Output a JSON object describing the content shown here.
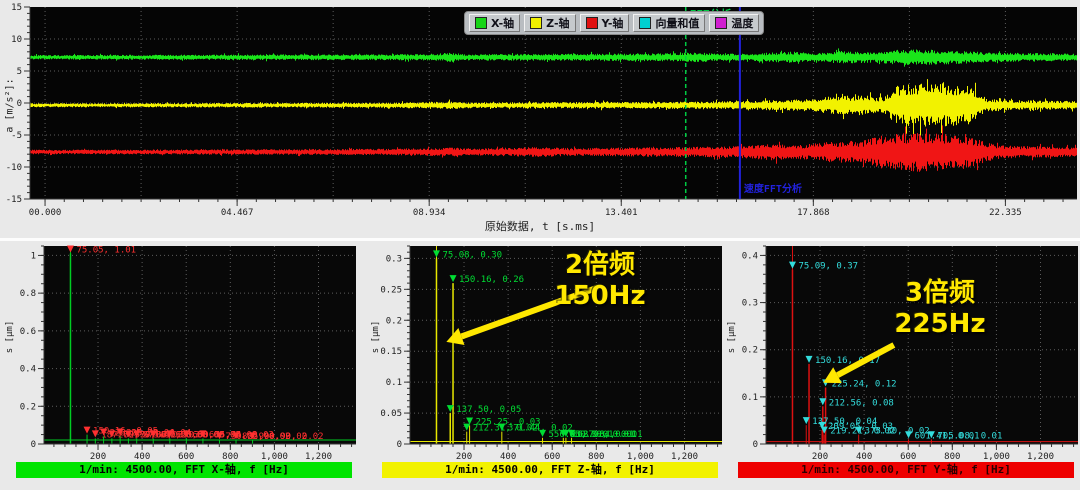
{
  "legend": {
    "items": [
      {
        "label": "X-轴",
        "color": "#17d417"
      },
      {
        "label": "Z-轴",
        "color": "#f0f000"
      },
      {
        "label": "Y-轴",
        "color": "#e01010"
      },
      {
        "label": "向量和值",
        "color": "#00d0d0"
      },
      {
        "label": "温度",
        "color": "#d020d0"
      }
    ]
  },
  "chart_data": [
    {
      "id": "waveform",
      "type": "line",
      "title": "",
      "xlabel": "原始数据, t [s.ms]",
      "ylabel": "a [m/s²]:",
      "xlim": [
        -0.35,
        24.0
      ],
      "ylim": [
        -15,
        15
      ],
      "xticks": [
        [
          0,
          "00.000"
        ],
        [
          4.467,
          "04.467"
        ],
        [
          8.934,
          "08.934"
        ],
        [
          13.401,
          "13.401"
        ],
        [
          17.868,
          "17.868"
        ],
        [
          22.335,
          "22.335"
        ]
      ],
      "yticks": [
        [
          15,
          "15"
        ],
        [
          10,
          "10"
        ],
        [
          5,
          "5"
        ],
        [
          0,
          "0"
        ],
        [
          -5,
          "-5"
        ],
        [
          -10,
          "-10"
        ],
        [
          -15,
          "-15"
        ]
      ],
      "grid": true,
      "series": [
        {
          "name": "X-轴",
          "color": "#1ae51a",
          "offset": 7.15,
          "envelope": [
            [
              0,
              0.35
            ],
            [
              3,
              0.4
            ],
            [
              6,
              0.45
            ],
            [
              9,
              0.5
            ],
            [
              9.4,
              0.75
            ],
            [
              9.7,
              0.5
            ],
            [
              12,
              0.55
            ],
            [
              14,
              0.6
            ],
            [
              15.2,
              0.75
            ],
            [
              15.6,
              0.55
            ],
            [
              16.5,
              0.6
            ],
            [
              17.3,
              0.9
            ],
            [
              18,
              0.7
            ],
            [
              18.5,
              1.0
            ],
            [
              19.3,
              0.85
            ],
            [
              19.8,
              1.15
            ],
            [
              20.5,
              1.3
            ],
            [
              21.3,
              1.0
            ],
            [
              21.8,
              0.8
            ],
            [
              22.6,
              0.7
            ],
            [
              24,
              0.55
            ]
          ]
        },
        {
          "name": "Z-轴",
          "color": "#f2f200",
          "offset": -0.35,
          "envelope": [
            [
              0,
              0.3
            ],
            [
              4,
              0.35
            ],
            [
              8,
              0.4
            ],
            [
              9.4,
              0.6
            ],
            [
              10,
              0.45
            ],
            [
              12,
              0.5
            ],
            [
              13.5,
              0.55
            ],
            [
              15,
              0.6
            ],
            [
              16,
              0.65
            ],
            [
              17,
              0.8
            ],
            [
              17.8,
              1.0
            ],
            [
              18.3,
              1.4
            ],
            [
              19,
              1.6
            ],
            [
              19.5,
              1.2
            ],
            [
              19.8,
              3.2
            ],
            [
              20.8,
              3.5
            ],
            [
              21.5,
              3.0
            ],
            [
              21.9,
              1.0
            ],
            [
              22.5,
              0.8
            ],
            [
              24,
              0.65
            ]
          ]
        },
        {
          "name": "Y-轴",
          "color": "#f01515",
          "offset": -7.65,
          "envelope": [
            [
              0,
              0.35
            ],
            [
              4,
              0.4
            ],
            [
              8,
              0.5
            ],
            [
              9.4,
              0.7
            ],
            [
              10,
              0.55
            ],
            [
              11.5,
              0.8
            ],
            [
              12.2,
              0.6
            ],
            [
              13.5,
              0.7
            ],
            [
              15,
              0.8
            ],
            [
              16,
              0.9
            ],
            [
              16.9,
              1.3
            ],
            [
              17.6,
              1.1
            ],
            [
              18.2,
              1.6
            ],
            [
              19,
              1.8
            ],
            [
              19.4,
              2.6
            ],
            [
              20.3,
              3.1
            ],
            [
              21.3,
              2.8
            ],
            [
              21.9,
              1.5
            ],
            [
              22.3,
              1.0
            ],
            [
              24,
              0.8
            ]
          ]
        }
      ],
      "cursors": [
        {
          "t": 14.9,
          "color": "#00cc44",
          "dash": true,
          "label": "FFT分析",
          "label_pos": "top"
        },
        {
          "t": 16.16,
          "color": "#2222dd",
          "dash": false,
          "label": "速度FFT分析",
          "label_pos": "bottom"
        }
      ]
    },
    {
      "id": "fft_x",
      "type": "bar",
      "ylabel": "s [μm]",
      "ylim": [
        0,
        1.05
      ],
      "ytick_minor": 0.05,
      "yticks": [
        [
          1,
          "1"
        ],
        [
          0.8,
          "0.8"
        ],
        [
          0.6,
          "0.6"
        ],
        [
          0.4,
          "0.4"
        ],
        [
          0.2,
          "0.2"
        ],
        [
          0,
          "0"
        ]
      ],
      "xlim": [
        -45,
        1370
      ],
      "xtick_minor": 50,
      "xticks": [
        [
          200,
          "200"
        ],
        [
          400,
          "400"
        ],
        [
          600,
          "600"
        ],
        [
          800,
          "800"
        ],
        [
          1000,
          "1,000"
        ],
        [
          1200,
          "1,200"
        ]
      ],
      "stick_color": "#00cc22",
      "marker_color": "#ff3030",
      "cursor": {
        "f": 75.05,
        "h": 0.021
      },
      "peaks": [
        {
          "f": 75.05,
          "v": 1.01,
          "label": "75.05, 1.01"
        },
        {
          "f": 150.16,
          "v": 0.05,
          "label": "150.16, 0.05"
        },
        {
          "f": 187.7,
          "v": 0.03,
          "label": "187.70, 0.03"
        },
        {
          "f": 225.25,
          "v": 0.04,
          "label": "225.25, 0.04"
        },
        {
          "f": 262.79,
          "v": 0.03,
          "label": "262.79, 0.03"
        },
        {
          "f": 300.33,
          "v": 0.04,
          "label": "300.33, 0.04"
        },
        {
          "f": 337.87,
          "v": 0.03,
          "label": "337.87, 0.03"
        },
        {
          "f": 375.41,
          "v": 0.03,
          "label": "375.41, 0.03"
        },
        {
          "f": 450.5,
          "v": 0.03,
          "label": "450.50, 0.03"
        },
        {
          "f": 525.58,
          "v": 0.03,
          "label": "525.58, 0.03"
        },
        {
          "f": 600.66,
          "v": 0.03,
          "label": "600.66, 0.03"
        },
        {
          "f": 675.74,
          "v": 0.03,
          "label": "675.74, 0.03"
        },
        {
          "f": 750.82,
          "v": 0.02,
          "label": "750.82, 0.02"
        },
        {
          "f": 825.9,
          "v": 0.02,
          "label": "825.90, 0.02"
        },
        {
          "f": 900.99,
          "v": 0.02,
          "label": "900.99, 0.02"
        }
      ],
      "footer": "1/min: 4500.00, FFT X-轴, f [Hz]",
      "footer_bg": "#00e400",
      "footer_fg": "#000000"
    },
    {
      "id": "fft_z",
      "type": "bar",
      "ylabel": "s [μm]",
      "ylim": [
        0,
        0.32
      ],
      "ytick_minor": 0.01,
      "yticks": [
        [
          0.3,
          "0.3"
        ],
        [
          0.25,
          "0.25"
        ],
        [
          0.2,
          "0.2"
        ],
        [
          0.15,
          "0.15"
        ],
        [
          0.1,
          "0.1"
        ],
        [
          0.05,
          "0.05"
        ],
        [
          0,
          "0"
        ]
      ],
      "xlim": [
        -45,
        1370
      ],
      "xtick_minor": 50,
      "xticks": [
        [
          200,
          "200"
        ],
        [
          400,
          "400"
        ],
        [
          600,
          "600"
        ],
        [
          800,
          "800"
        ],
        [
          1000,
          "1,000"
        ],
        [
          1200,
          "1,200"
        ]
      ],
      "stick_color": "#e8e800",
      "marker_color": "#00dd33",
      "cursor": {
        "f": 75.08,
        "h": 0.004
      },
      "peaks": [
        {
          "f": 75.08,
          "v": 0.3,
          "label": "75.08, 0.30"
        },
        {
          "f": 150.16,
          "v": 0.26,
          "label": "150.16, 0.26"
        },
        {
          "f": 137.5,
          "v": 0.05,
          "label": "137.50, 0.05"
        },
        {
          "f": 225.25,
          "v": 0.03,
          "label": "225.25, 0.03"
        },
        {
          "f": 212.31,
          "v": 0.02,
          "label": "212.31, 0.02"
        },
        {
          "f": 371.44,
          "v": 0.02,
          "label": "371.44, 0.02"
        },
        {
          "f": 556.03,
          "v": 0.01,
          "label": "556.03, 0.01"
        },
        {
          "f": 650.3,
          "v": 0.01,
          "label": "650.30, 0.01"
        },
        {
          "f": 662.08,
          "v": 0.01,
          "label": "662.08, 0.01"
        },
        {
          "f": 687.64,
          "v": 0.01,
          "label": "687.64, 0.01"
        }
      ],
      "annotation": {
        "line1": "2倍频",
        "line2": "150Hz",
        "color": "#ffe800",
        "arrow": {
          "f1": 800,
          "v1": 0.252,
          "f2": 120,
          "v2": 0.165
        }
      },
      "footer": "1/min: 4500.00, FFT Z-轴, f [Hz]",
      "footer_bg": "#f2f200",
      "footer_fg": "#000000"
    },
    {
      "id": "fft_y",
      "type": "bar",
      "ylabel": "s [μm]",
      "ylim": [
        0,
        0.42
      ],
      "ytick_minor": 0.02,
      "yticks": [
        [
          0.4,
          "0.4"
        ],
        [
          0.3,
          "0.3"
        ],
        [
          0.2,
          "0.2"
        ],
        [
          0.1,
          "0.1"
        ],
        [
          0,
          "0"
        ]
      ],
      "xlim": [
        -45,
        1370
      ],
      "xtick_minor": 50,
      "xticks": [
        [
          200,
          "200"
        ],
        [
          400,
          "400"
        ],
        [
          600,
          "600"
        ],
        [
          800,
          "800"
        ],
        [
          1000,
          "1,000"
        ],
        [
          1200,
          "1,200"
        ]
      ],
      "stick_color": "#dd1111",
      "marker_color": "#33dddd",
      "cursor": {
        "f": 75.09,
        "h": 0.005
      },
      "peaks": [
        {
          "f": 75.09,
          "v": 0.37,
          "label": "75.09, 0.37"
        },
        {
          "f": 150.16,
          "v": 0.17,
          "label": "150.16, 0.17"
        },
        {
          "f": 225.24,
          "v": 0.12,
          "label": "225.24, 0.12"
        },
        {
          "f": 212.56,
          "v": 0.08,
          "label": "212.56, 0.08"
        },
        {
          "f": 137.5,
          "v": 0.04,
          "label": "137.50, 0.04"
        },
        {
          "f": 209.05,
          "v": 0.03,
          "label": "209.05, 0.03"
        },
        {
          "f": 219.21,
          "v": 0.02,
          "label": "219.21, 0.02"
        },
        {
          "f": 375.3,
          "v": 0.02,
          "label": "375.30, 0.02"
        },
        {
          "f": 601.41,
          "v": 0.01,
          "label": "601.41, 0.01"
        },
        {
          "f": 705.08,
          "v": 0.01,
          "label": "705.08, 0.01"
        }
      ],
      "annotation": {
        "line1": "3倍频",
        "line2": "225Hz",
        "color": "#ffe800",
        "arrow": {
          "f1": 535,
          "v1": 0.21,
          "f2": 215,
          "v2": 0.13
        }
      },
      "footer": "1/min: 4500.00, FFT Y-轴, f [Hz]",
      "footer_bg": "#ee0000",
      "footer_fg": "#2a0000"
    }
  ]
}
